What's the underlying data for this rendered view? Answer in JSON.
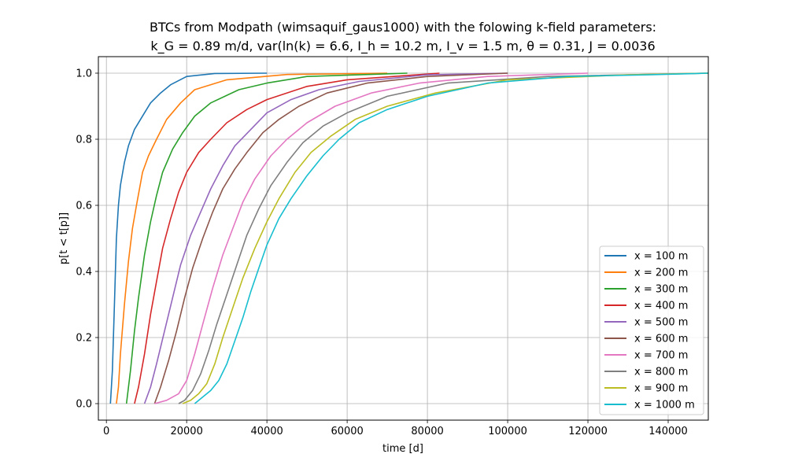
{
  "chart_data": {
    "type": "line",
    "title_line1": "BTCs from Modpath (wimsaquif_gaus1000) with the folowing k-field parameters:",
    "title_line2": "k_G = 0.89 m/d, var(ln(k) = 6.6, I_h = 10.2 m, I_v = 1.5 m, θ = 0.31, J = 0.0036",
    "xlabel": "time [d]",
    "ylabel": "p[t < t[p]]",
    "xlim": [
      -2000,
      150000
    ],
    "ylim": [
      -0.05,
      1.05
    ],
    "xticks": [
      0,
      20000,
      40000,
      60000,
      80000,
      100000,
      120000,
      140000
    ],
    "yticks": [
      0.0,
      0.2,
      0.4,
      0.6,
      0.8,
      1.0
    ],
    "xtick_labels": [
      "0",
      "20000",
      "40000",
      "60000",
      "80000",
      "100000",
      "120000",
      "140000"
    ],
    "ytick_labels": [
      "0.0",
      "0.2",
      "0.4",
      "0.6",
      "0.8",
      "1.0"
    ],
    "grid": true,
    "legend_position": "bottom-right",
    "series": [
      {
        "name": "x = 100 m",
        "color": "#1f77b4",
        "x": [
          1000,
          1500,
          2000,
          2500,
          3000,
          3500,
          4500,
          5500,
          7000,
          9000,
          11000,
          13500,
          16000,
          20000,
          27000,
          40000
        ],
        "y": [
          0.0,
          0.1,
          0.3,
          0.5,
          0.6,
          0.66,
          0.73,
          0.78,
          0.83,
          0.87,
          0.91,
          0.94,
          0.965,
          0.99,
          0.999,
          1.0
        ]
      },
      {
        "name": "x = 200 m",
        "color": "#ff7f0e",
        "x": [
          2500,
          3000,
          3500,
          4500,
          5500,
          6500,
          7500,
          9000,
          10500,
          12500,
          15000,
          18500,
          22000,
          30000,
          45000,
          70000
        ],
        "y": [
          0.0,
          0.05,
          0.15,
          0.3,
          0.43,
          0.53,
          0.6,
          0.7,
          0.75,
          0.8,
          0.86,
          0.91,
          0.95,
          0.98,
          0.996,
          1.0
        ]
      },
      {
        "name": "x = 300 m",
        "color": "#2ca02c",
        "x": [
          5000,
          6000,
          7000,
          8000,
          9500,
          11000,
          12500,
          14000,
          16500,
          19000,
          22000,
          26000,
          33000,
          40000,
          50000,
          75000
        ],
        "y": [
          0.0,
          0.1,
          0.22,
          0.32,
          0.45,
          0.55,
          0.63,
          0.7,
          0.77,
          0.82,
          0.87,
          0.91,
          0.95,
          0.97,
          0.99,
          1.0
        ]
      },
      {
        "name": "x = 400 m",
        "color": "#d62728",
        "x": [
          7000,
          8000,
          9500,
          11000,
          12500,
          14000,
          16000,
          18000,
          20000,
          23000,
          26000,
          30000,
          35000,
          40000,
          50000,
          60000,
          83000
        ],
        "y": [
          0.0,
          0.05,
          0.15,
          0.27,
          0.37,
          0.47,
          0.56,
          0.64,
          0.7,
          0.76,
          0.8,
          0.85,
          0.89,
          0.92,
          0.96,
          0.98,
          1.0
        ]
      },
      {
        "name": "x = 500 m",
        "color": "#9467bd",
        "x": [
          9500,
          11000,
          12500,
          14500,
          16500,
          18500,
          21000,
          23500,
          26000,
          29000,
          32000,
          36000,
          40000,
          46000,
          53000,
          63000,
          80000,
          100000
        ],
        "y": [
          0.0,
          0.05,
          0.12,
          0.22,
          0.32,
          0.42,
          0.51,
          0.58,
          0.65,
          0.72,
          0.78,
          0.83,
          0.88,
          0.92,
          0.95,
          0.975,
          0.995,
          1.0
        ]
      },
      {
        "name": "x = 600 m",
        "color": "#8c564b",
        "x": [
          12000,
          13500,
          15500,
          17500,
          19500,
          21500,
          24000,
          26500,
          29000,
          32000,
          35000,
          39000,
          43000,
          48000,
          55000,
          65000,
          80000,
          100000
        ],
        "y": [
          0.0,
          0.05,
          0.13,
          0.22,
          0.32,
          0.41,
          0.5,
          0.58,
          0.65,
          0.71,
          0.76,
          0.82,
          0.86,
          0.9,
          0.94,
          0.97,
          0.99,
          1.0
        ]
      },
      {
        "name": "x = 700 m",
        "color": "#e377c2",
        "x": [
          12000,
          15000,
          18000,
          20000,
          22000,
          24000,
          26500,
          29000,
          31500,
          34000,
          37000,
          41000,
          45000,
          50000,
          57000,
          66000,
          78000,
          95000,
          120000
        ],
        "y": [
          0.0,
          0.01,
          0.03,
          0.07,
          0.15,
          0.24,
          0.35,
          0.45,
          0.53,
          0.61,
          0.68,
          0.75,
          0.8,
          0.85,
          0.9,
          0.94,
          0.97,
          0.99,
          1.0
        ]
      },
      {
        "name": "x = 800 m",
        "color": "#7f7f7f",
        "x": [
          18000,
          19500,
          21500,
          23500,
          25500,
          27500,
          30000,
          32500,
          35000,
          38000,
          41000,
          45000,
          49000,
          54000,
          60000,
          70000,
          85000,
          110000,
          150000
        ],
        "y": [
          0.0,
          0.01,
          0.04,
          0.09,
          0.16,
          0.24,
          0.33,
          0.42,
          0.51,
          0.59,
          0.66,
          0.73,
          0.79,
          0.84,
          0.88,
          0.93,
          0.97,
          0.99,
          1.0
        ]
      },
      {
        "name": "x = 900 m",
        "color": "#bcbd22",
        "x": [
          19000,
          21000,
          23000,
          25000,
          27000,
          29000,
          31500,
          34000,
          37000,
          40000,
          43000,
          47000,
          51000,
          56000,
          62000,
          70000,
          82000,
          100000,
          130000,
          150000
        ],
        "y": [
          0.0,
          0.01,
          0.03,
          0.06,
          0.12,
          0.2,
          0.29,
          0.38,
          0.47,
          0.55,
          0.62,
          0.7,
          0.76,
          0.81,
          0.86,
          0.9,
          0.94,
          0.98,
          0.995,
          1.0
        ]
      },
      {
        "name": "x = 1000 m",
        "color": "#17becf",
        "x": [
          22000,
          24000,
          26000,
          28000,
          30000,
          32000,
          34000,
          36000,
          38000,
          40000,
          43000,
          46000,
          50000,
          54000,
          58000,
          63000,
          70000,
          80000,
          95000,
          115000,
          135000,
          150000
        ],
        "y": [
          0.0,
          0.02,
          0.04,
          0.07,
          0.12,
          0.19,
          0.26,
          0.34,
          0.41,
          0.48,
          0.56,
          0.62,
          0.69,
          0.75,
          0.8,
          0.85,
          0.89,
          0.93,
          0.97,
          0.99,
          0.995,
          1.0
        ]
      }
    ]
  }
}
